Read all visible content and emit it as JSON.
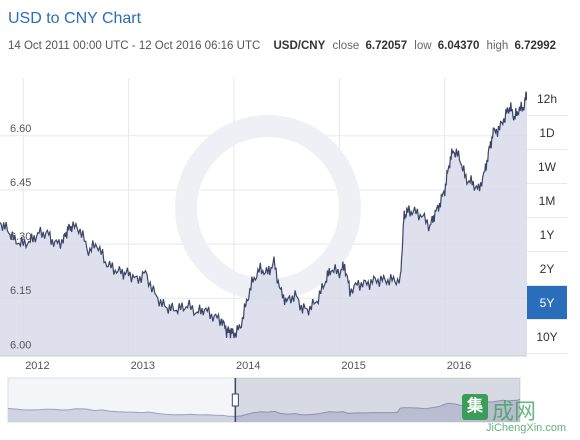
{
  "header": {
    "title": "USD to CNY Chart",
    "range_text": "14 Oct 2011 00:00 UTC - 12 Oct 2016 06:16 UTC",
    "pair": "USD/CNY",
    "close_label": "close",
    "close_value": "6.72057",
    "low_label": "low",
    "low_value": "6.04370",
    "high_label": "high",
    "high_value": "6.72992"
  },
  "range_buttons": [
    "12h",
    "1D",
    "1W",
    "1M",
    "1Y",
    "2Y",
    "5Y",
    "10Y"
  ],
  "active_range": "5Y",
  "watermark": {
    "box": "集",
    "chars": "成网",
    "url": "JiChengXin.com"
  },
  "colors": {
    "accent": "#2a6ebb",
    "line": "#3b4466",
    "area": "#d6d9e8"
  },
  "chart_data": {
    "type": "area",
    "series": [
      {
        "x": [
          2011.78,
          2011.85,
          2011.92,
          2012.0,
          2012.08,
          2012.15,
          2012.23,
          2012.3,
          2012.38,
          2012.42,
          2012.46,
          2012.54,
          2012.62,
          2012.7,
          2012.78,
          2012.86,
          2012.94,
          2013.0,
          2013.08,
          2013.16,
          2013.25,
          2013.33,
          2013.4,
          2013.48,
          2013.56,
          2013.65,
          2013.72,
          2013.8,
          2013.88,
          2013.93,
          2013.96,
          2014.0,
          2014.06,
          2014.12,
          2014.18,
          2014.25,
          2014.32,
          2014.38,
          2014.44,
          2014.5,
          2014.58,
          2014.65,
          2014.72,
          2014.8,
          2014.87,
          2014.92,
          2015.0,
          2015.05,
          2015.1,
          2015.18,
          2015.26,
          2015.34,
          2015.42,
          2015.5,
          2015.58,
          2015.61,
          2015.64,
          2015.7,
          2015.78,
          2015.86,
          2015.9,
          2015.95,
          2016.0,
          2016.04,
          2016.08,
          2016.14,
          2016.2,
          2016.26,
          2016.32,
          2016.38,
          2016.42,
          2016.46,
          2016.52,
          2016.58,
          2016.62,
          2016.66,
          2016.7,
          2016.75,
          2016.78
        ],
        "values": [
          6.36,
          6.34,
          6.31,
          6.3,
          6.31,
          6.33,
          6.33,
          6.3,
          6.31,
          6.34,
          6.35,
          6.34,
          6.28,
          6.3,
          6.25,
          6.23,
          6.22,
          6.22,
          6.2,
          6.22,
          6.16,
          6.13,
          6.12,
          6.12,
          6.13,
          6.11,
          6.12,
          6.1,
          6.09,
          6.06,
          6.06,
          6.05,
          6.07,
          6.14,
          6.2,
          6.23,
          6.22,
          6.25,
          6.17,
          6.14,
          6.16,
          6.12,
          6.12,
          6.15,
          6.2,
          6.23,
          6.22,
          6.24,
          6.17,
          6.19,
          6.19,
          6.2,
          6.2,
          6.2,
          6.2,
          6.37,
          6.39,
          6.39,
          6.38,
          6.35,
          6.38,
          6.41,
          6.45,
          6.52,
          6.56,
          6.54,
          6.48,
          6.47,
          6.45,
          6.5,
          6.56,
          6.61,
          6.62,
          6.66,
          6.68,
          6.65,
          6.67,
          6.68,
          6.72
        ]
      }
    ],
    "ylim": [
      5.99,
      6.76
    ],
    "y_ticks": [
      6.0,
      6.15,
      6.3,
      6.45,
      6.6
    ],
    "y_tick_labels": [
      "6.00",
      "6.15",
      "6.30",
      "6.45",
      "6.60"
    ],
    "xlim": [
      2011.78,
      2016.78
    ],
    "x_ticks": [
      2012,
      2013,
      2014,
      2015,
      2016
    ],
    "x_tick_labels": [
      "2012",
      "2013",
      "2014",
      "2015",
      "2016"
    ],
    "grid": true,
    "title": "USD to CNY Chart",
    "xlabel": "",
    "ylabel": ""
  }
}
